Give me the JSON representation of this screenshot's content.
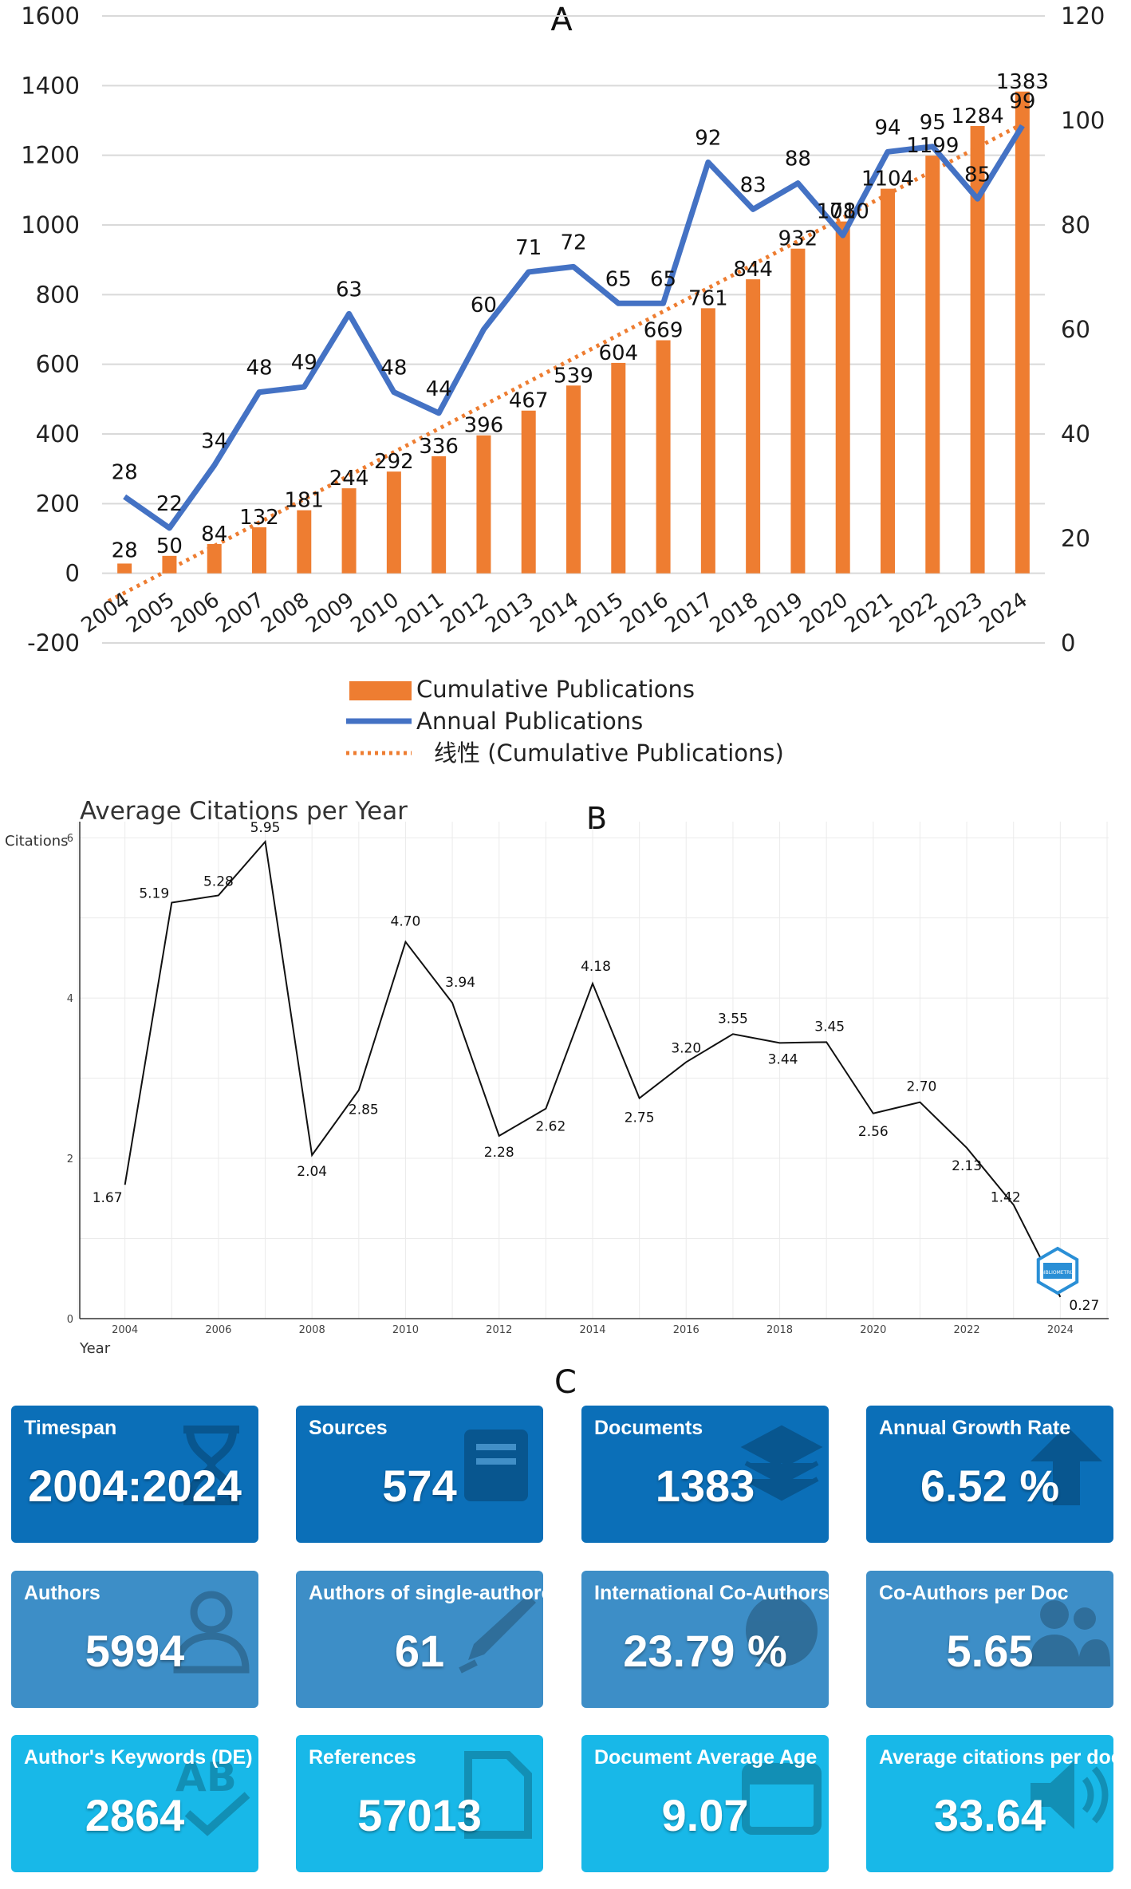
{
  "chart_data": [
    {
      "type": "bar",
      "panel_label": "A",
      "categories": [
        "2004",
        "2005",
        "2006",
        "2007",
        "2008",
        "2009",
        "2010",
        "2011",
        "2012",
        "2013",
        "2014",
        "2015",
        "2016",
        "2017",
        "2018",
        "2019",
        "2020",
        "2021",
        "2022",
        "2023",
        "2024"
      ],
      "series": [
        {
          "name": "Cumulative Publications",
          "kind": "bar",
          "axis": "left",
          "values": [
            28,
            50,
            84,
            132,
            181,
            244,
            292,
            336,
            396,
            467,
            539,
            604,
            669,
            761,
            844,
            932,
            1010,
            1104,
            1199,
            1284,
            1383
          ]
        },
        {
          "name": "Annual Publications",
          "kind": "line",
          "axis": "right",
          "values": [
            28,
            22,
            34,
            48,
            49,
            63,
            48,
            44,
            60,
            71,
            72,
            65,
            65,
            92,
            83,
            88,
            78,
            94,
            95,
            85,
            99
          ]
        },
        {
          "name": "线性 (Cumulative Publications)",
          "kind": "trendline",
          "axis": "left",
          "start": -80,
          "end": 1290
        }
      ],
      "ylim_left": [
        -200,
        1600
      ],
      "yticks_left": [
        "-200",
        "0",
        "200",
        "400",
        "600",
        "800",
        "1000",
        "1200",
        "1400",
        "1600"
      ],
      "ylim_right": [
        0,
        120
      ],
      "yticks_right": [
        "0",
        "20",
        "40",
        "60",
        "80",
        "100",
        "120"
      ],
      "legend": [
        "Cumulative Publications",
        "Annual Publications",
        "线性 (Cumulative Publications)"
      ],
      "colors": {
        "bar": "#ee7d31",
        "line": "#4472c4",
        "trend": "#ee7d31",
        "grid": "#d9d9d9"
      }
    },
    {
      "type": "line",
      "panel_label": "B",
      "title": "Average Citations per Year",
      "ylabel": "Citations",
      "xlabel": "Year",
      "x": [
        2004,
        2005,
        2006,
        2007,
        2008,
        2009,
        2010,
        2011,
        2012,
        2013,
        2014,
        2015,
        2016,
        2017,
        2018,
        2019,
        2020,
        2021,
        2022,
        2023,
        2024
      ],
      "values": [
        1.67,
        5.19,
        5.28,
        5.95,
        2.04,
        2.85,
        4.7,
        3.94,
        2.28,
        2.62,
        4.18,
        2.75,
        3.2,
        3.55,
        3.44,
        3.45,
        2.56,
        2.7,
        2.13,
        1.42,
        0.27
      ],
      "labels": [
        "1.67",
        "5.19",
        "5.28",
        "5.95",
        "2.04",
        "2.85",
        "4.70",
        "3.94",
        "2.28",
        "2.62",
        "4.18",
        "2.75",
        "3.20",
        "3.55",
        "3.44",
        "3.45",
        "2.56",
        "2.70",
        "2.13",
        "1.42",
        "0.27"
      ],
      "xticks": [
        "2004",
        "2006",
        "2008",
        "2010",
        "2012",
        "2014",
        "2016",
        "2018",
        "2020",
        "2022",
        "2024"
      ],
      "yticks": [
        "0",
        "2",
        "4",
        "6"
      ],
      "ylim": [
        0,
        6.2
      ],
      "badge_text": "BIBLIOMETRIX",
      "colors": {
        "line": "#111111",
        "grid": "#ebebeb",
        "badge": "#2a8fd6"
      }
    }
  ],
  "panel_c": {
    "label": "C",
    "cards": [
      {
        "title": "Timespan",
        "value": "2004:2024",
        "icon": "hourglass-icon"
      },
      {
        "title": "Sources",
        "value": "574",
        "icon": "book-icon"
      },
      {
        "title": "Documents",
        "value": "1383",
        "icon": "layers-icon"
      },
      {
        "title": "Annual Growth Rate",
        "value": "6.52 %",
        "icon": "arrow-up-icon"
      },
      {
        "title": "Authors",
        "value": "5994",
        "icon": "user-icon"
      },
      {
        "title": "Authors of single-authored docs",
        "value": "61",
        "icon": "pen-icon"
      },
      {
        "title": "International Co-Authorship",
        "value": "23.79 %",
        "icon": "globe-icon"
      },
      {
        "title": "Co-Authors per Doc",
        "value": "5.65",
        "icon": "users-icon"
      },
      {
        "title": "Author's Keywords (DE)",
        "value": "2864",
        "icon": "spellcheck-icon"
      },
      {
        "title": "References",
        "value": "57013",
        "icon": "file-icon"
      },
      {
        "title": "Document Average Age",
        "value": "9.07",
        "icon": "calendar-icon"
      },
      {
        "title": "Average citations per doc",
        "value": "33.64",
        "icon": "volume-icon"
      }
    ]
  }
}
